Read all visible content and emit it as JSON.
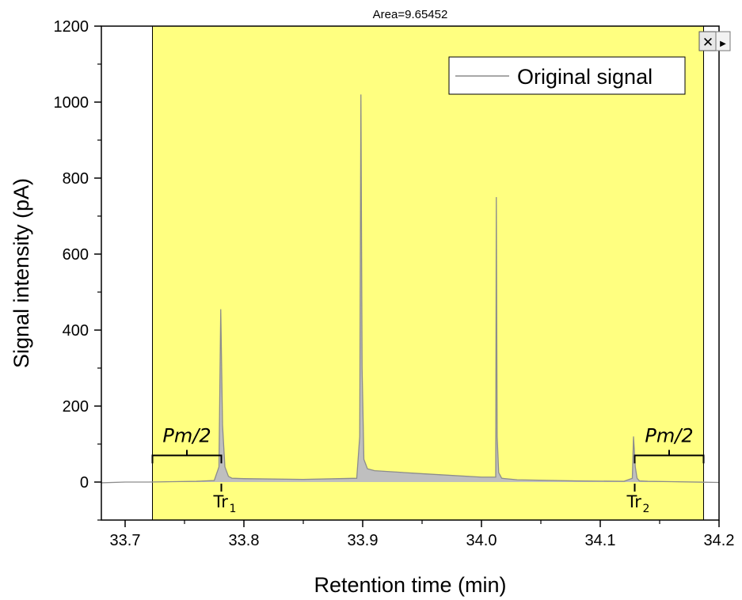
{
  "chart_data": {
    "type": "area",
    "xlabel": "Retention time (min)",
    "ylabel": "Signal intensity (pA)",
    "xlim": [
      33.68,
      34.2
    ],
    "ylim": [
      -100,
      1200
    ],
    "xticks": [
      33.7,
      33.8,
      33.9,
      34.0,
      34.1,
      34.2
    ],
    "xtick_labels": [
      "33.7",
      "33.8",
      "33.9",
      "34.0",
      "34.1",
      "34.2"
    ],
    "yticks": [
      0,
      200,
      400,
      600,
      800,
      1000,
      1200
    ],
    "ytick_labels": [
      "0",
      "200",
      "400",
      "600",
      "800",
      "1000",
      "1200"
    ],
    "grid": false,
    "legend_position": "top-right",
    "colors": {
      "integration_region": "#ffff80",
      "signal_line": "#8c8c8c",
      "signal_fill": "#bfbfbf"
    },
    "integration_region": {
      "x_start": 33.723,
      "x_end": 34.187
    },
    "series": [
      {
        "name": "Original signal",
        "x": [
          33.68,
          33.7,
          33.72,
          33.74,
          33.76,
          33.775,
          33.779,
          33.7805,
          33.782,
          33.784,
          33.787,
          33.79,
          33.8,
          33.85,
          33.895,
          33.8975,
          33.8985,
          33.8995,
          33.901,
          33.904,
          33.91,
          33.95,
          34.0,
          34.012,
          34.0125,
          34.0132,
          34.0145,
          34.017,
          34.03,
          34.08,
          34.12,
          34.127,
          34.128,
          34.1295,
          34.131,
          34.133,
          34.14,
          34.16,
          34.2
        ],
        "y": [
          -2,
          0,
          0,
          1,
          2,
          4,
          40,
          455,
          150,
          40,
          15,
          10,
          9,
          7,
          10,
          120,
          1020,
          300,
          60,
          35,
          30,
          22,
          13,
          13,
          750,
          120,
          25,
          10,
          6,
          3,
          2,
          10,
          120,
          40,
          10,
          3,
          2,
          1,
          -1
        ]
      }
    ],
    "annotations": [
      {
        "text": "Area=9.65452",
        "position": "top-center"
      },
      {
        "text": "Pm/2",
        "x_start": 33.723,
        "x_end": 33.781
      },
      {
        "text": "Pm/2",
        "x_start": 34.129,
        "x_end": 34.187
      },
      {
        "text": "Tr",
        "subscript": "1",
        "x": 33.781
      },
      {
        "text": "Tr",
        "subscript": "2",
        "x": 34.129
      }
    ]
  },
  "controls": {
    "close_label": "✕",
    "arrow_label": "▶"
  }
}
